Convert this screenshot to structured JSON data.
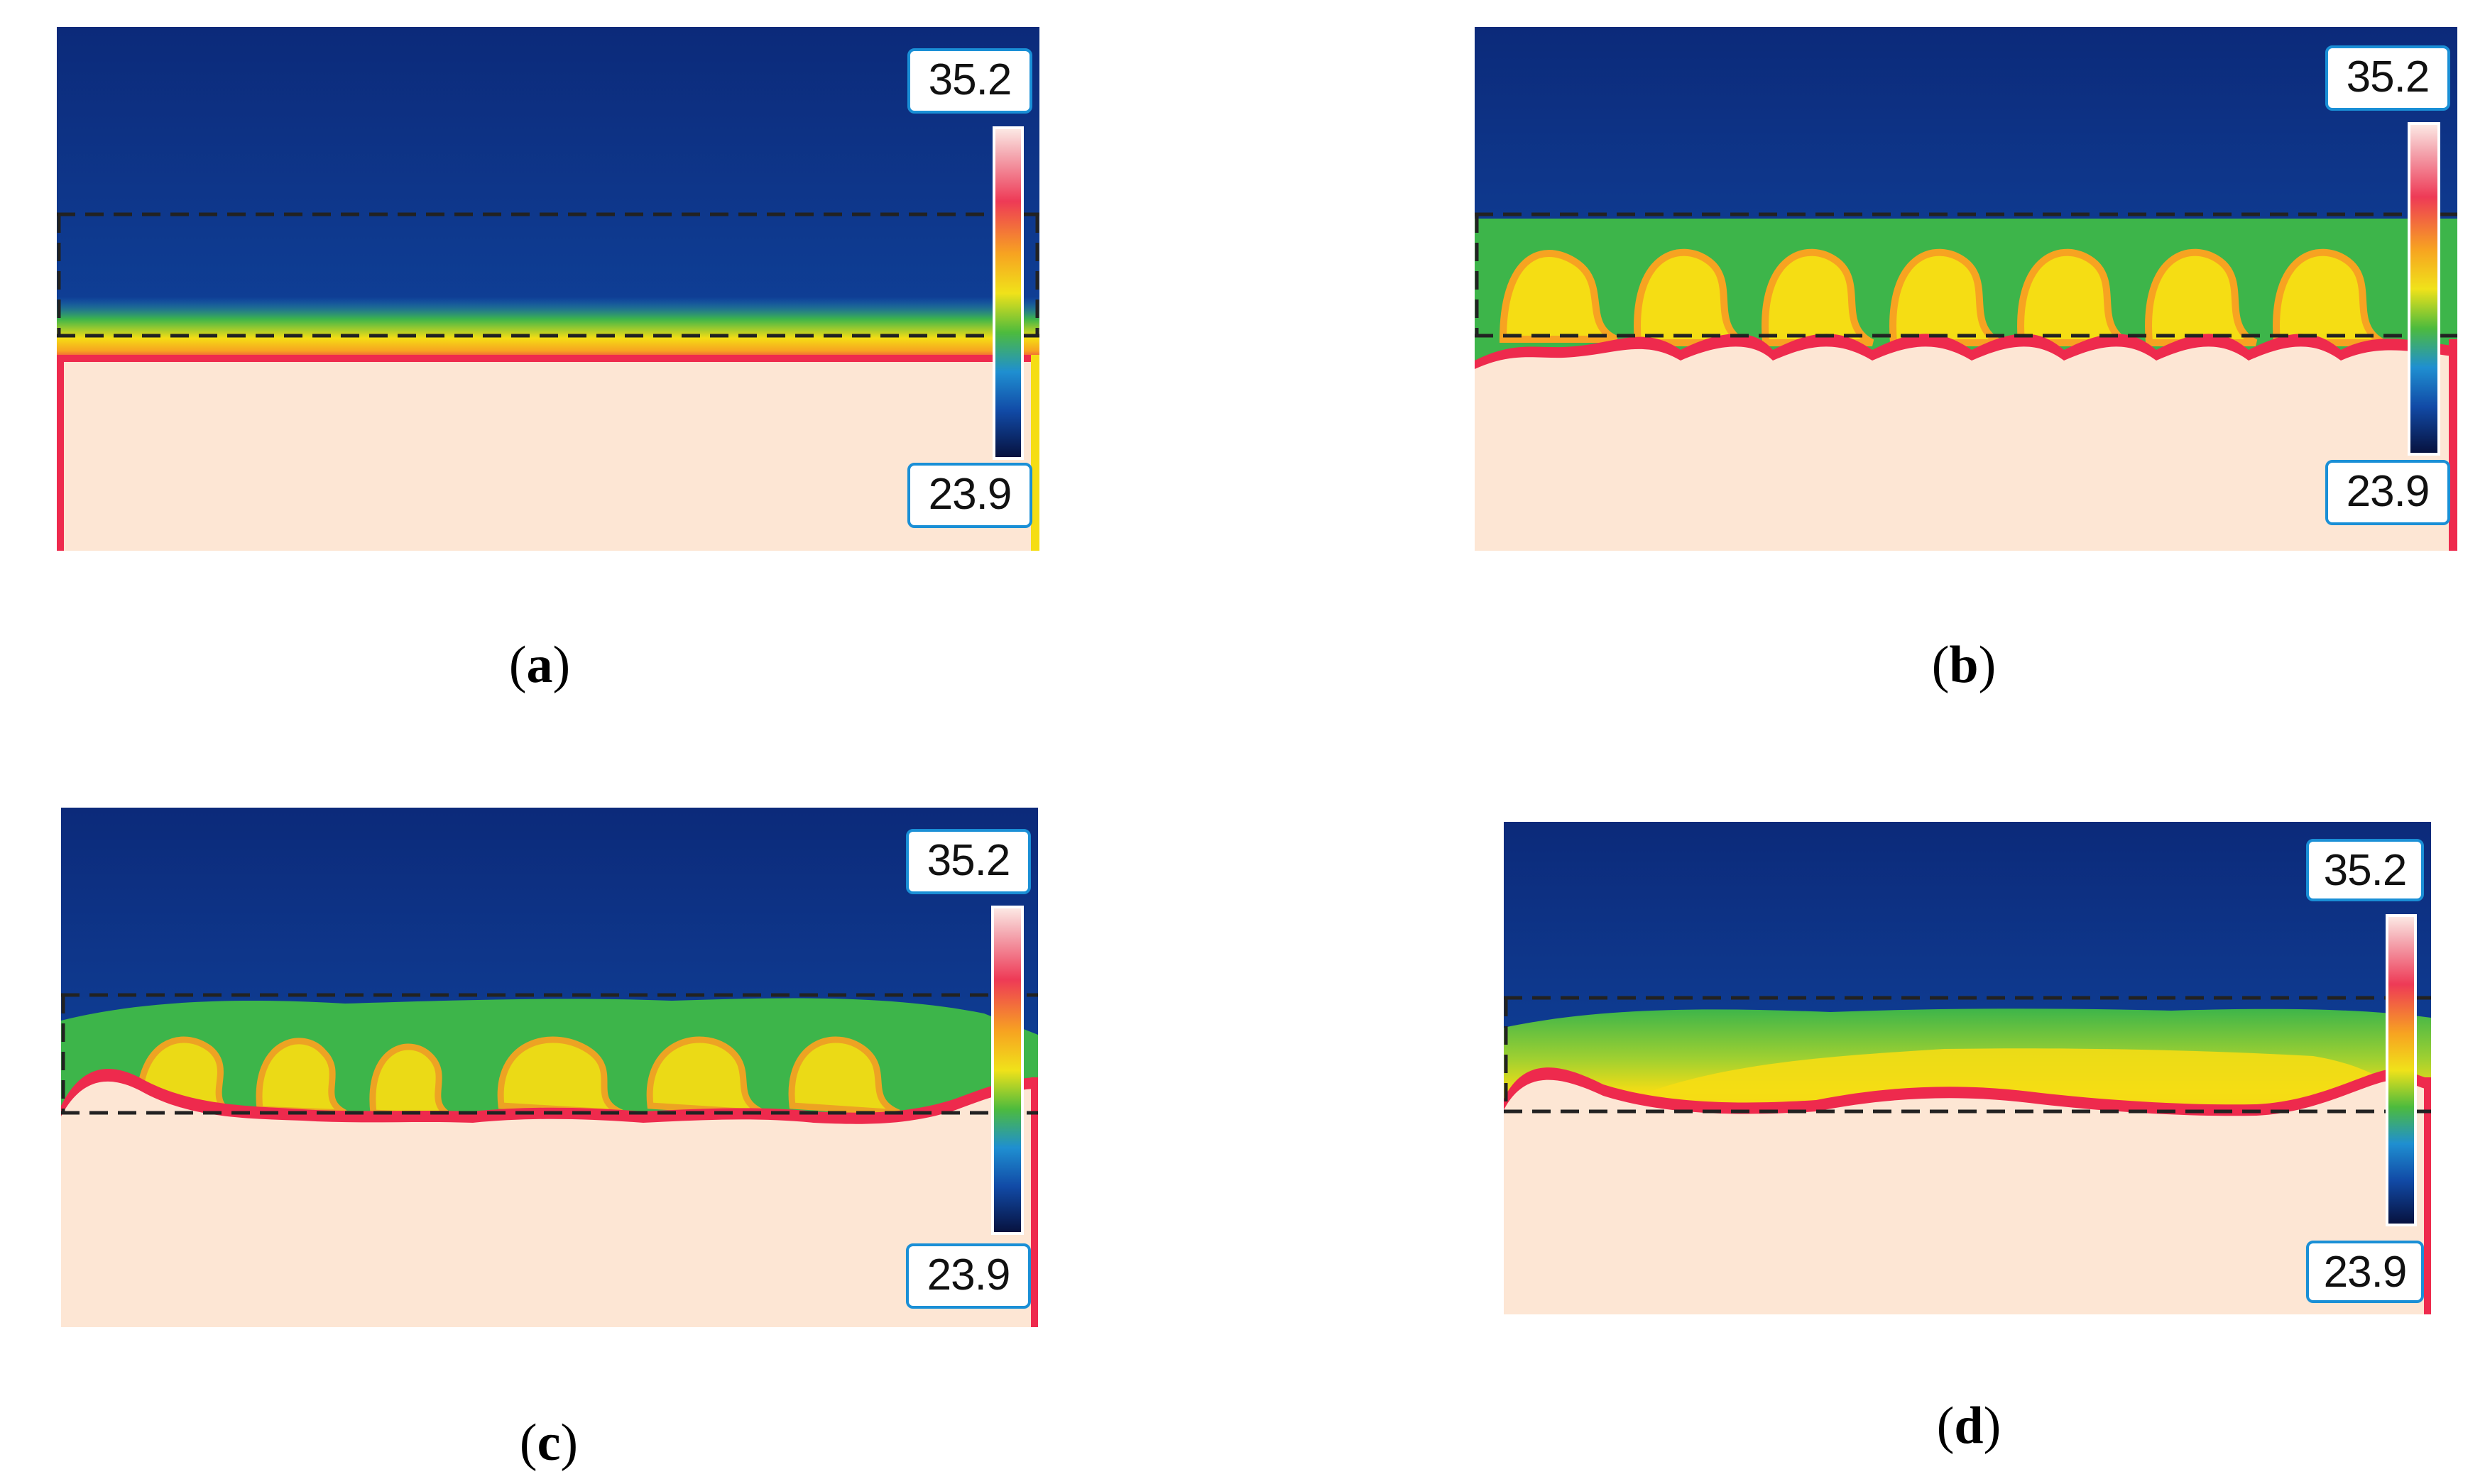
{
  "figure": {
    "panels": [
      {
        "id": "a",
        "caption_letter": "a",
        "max_temp": "35.2",
        "min_temp": "23.9",
        "flow_state": "flat-layer"
      },
      {
        "id": "b",
        "caption_letter": "b",
        "max_temp": "35.2",
        "min_temp": "23.9",
        "flow_state": "regular-cells"
      },
      {
        "id": "c",
        "caption_letter": "c",
        "max_temp": "35.2",
        "min_temp": "23.9",
        "flow_state": "irregular-cells"
      },
      {
        "id": "d",
        "caption_letter": "d",
        "max_temp": "35.2",
        "min_temp": "23.9",
        "flow_state": "merged-layer"
      }
    ],
    "colors": {
      "cold": "#0c3f9a",
      "hot_fluid": "#fde6d4",
      "hot_edge": "#ee2a4d",
      "warm": "#f5dd14",
      "mid": "#3db54a",
      "scale_border": "#1a8fd6"
    }
  }
}
